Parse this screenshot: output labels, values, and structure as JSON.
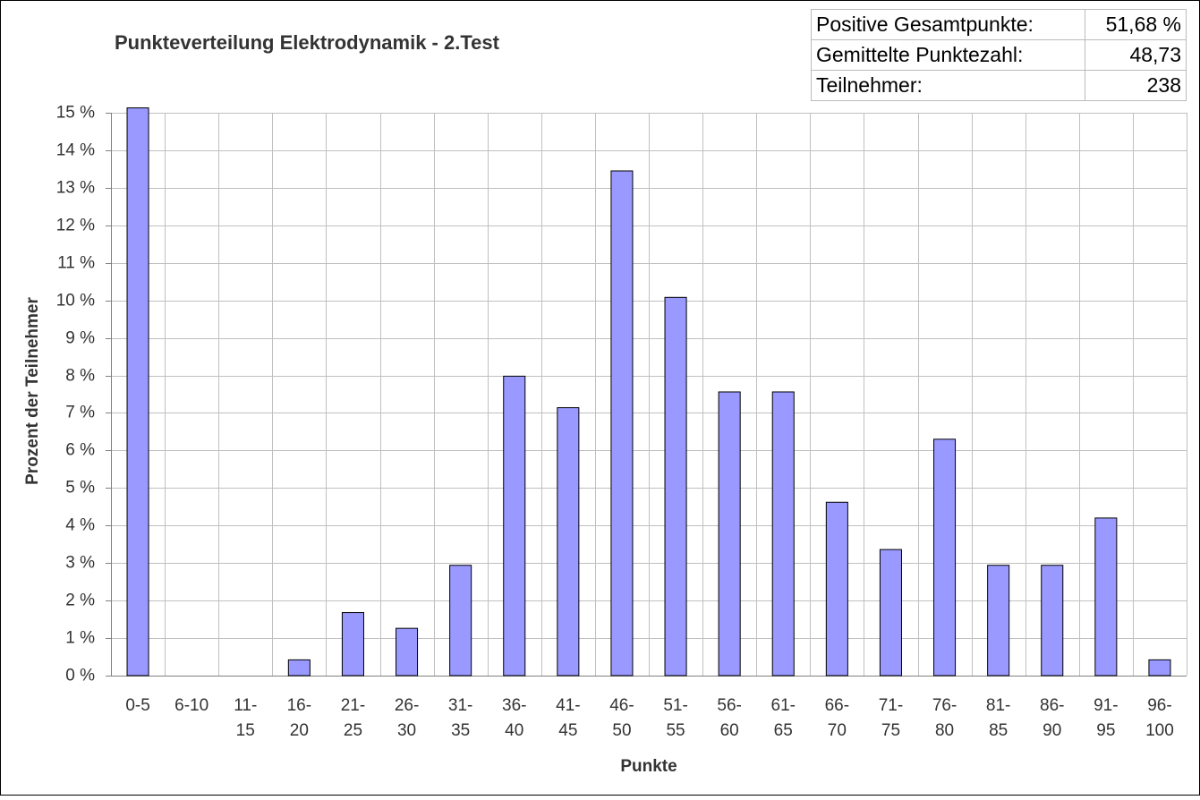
{
  "chart_data": {
    "type": "bar",
    "title": "Punkteverteilung Elektrodynamik - 2.Test",
    "x_label": "Punkte",
    "y_label": "Prozent der Teilnehmer",
    "categories": [
      "0-5",
      "6-10",
      "11-15",
      "16-20",
      "21-25",
      "26-30",
      "31-35",
      "36-40",
      "41-45",
      "46-50",
      "51-55",
      "56-60",
      "61-65",
      "66-70",
      "71-75",
      "76-80",
      "81-85",
      "86-90",
      "91-95",
      "96-100"
    ],
    "values": [
      15.13,
      0,
      0,
      0.42,
      1.68,
      1.26,
      2.94,
      7.98,
      7.14,
      13.45,
      10.08,
      7.56,
      7.56,
      4.62,
      3.36,
      6.3,
      2.94,
      2.94,
      4.2,
      0.42
    ],
    "color": "#9999ff",
    "ylim": [
      0,
      15
    ],
    "yticks": [
      {
        "value": 0,
        "label": "0 %"
      },
      {
        "value": 1,
        "label": "1 %"
      },
      {
        "value": 2,
        "label": "2 %"
      },
      {
        "value": 3,
        "label": "3 %"
      },
      {
        "value": 4,
        "label": "4 %"
      },
      {
        "value": 5,
        "label": "5 %"
      },
      {
        "value": 6,
        "label": "6 %"
      },
      {
        "value": 7,
        "label": "7 %"
      },
      {
        "value": 8,
        "label": "8 %"
      },
      {
        "value": 9,
        "label": "9 %"
      },
      {
        "value": 10,
        "label": "10 %"
      },
      {
        "value": 11,
        "label": "11 %"
      },
      {
        "value": 12,
        "label": "12 %"
      },
      {
        "value": 13,
        "label": "13 %"
      },
      {
        "value": 14,
        "label": "14 %"
      },
      {
        "value": 15,
        "label": "15 %"
      }
    ],
    "grid": true
  },
  "table": {
    "rows": [
      [
        "Positive Gesamtpunkte:",
        "51,68 %"
      ],
      [
        "Gemittelte Punktezahl:",
        "48,73"
      ],
      [
        "Teilnehmer:",
        "238"
      ]
    ]
  }
}
